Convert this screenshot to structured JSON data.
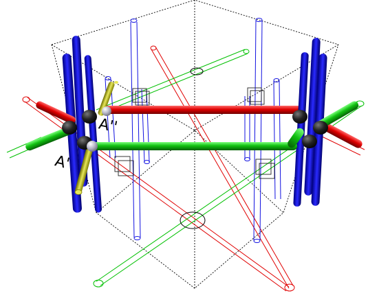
{
  "labels": {
    "primed": "A'",
    "double_primed": "A''"
  },
  "colors": {
    "red_axis": "#e00000",
    "green_axis": "#00c800",
    "blue_axis": "#0000e0",
    "yellow_axis": "#b4b400",
    "joint": "#111111",
    "bounding_box": "#000000"
  }
}
